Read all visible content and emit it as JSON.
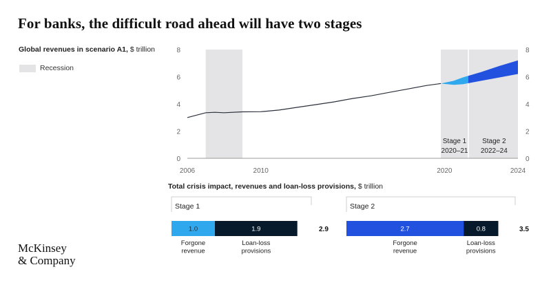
{
  "title": "For banks, the difficult road ahead will have two stages",
  "subtitle_bold": "Global revenues in scenario A1,",
  "subtitle_rest": "$ trillion",
  "legend_label": "Recession",
  "logo_line1": "McKinsey",
  "logo_line2": "& Company",
  "colors": {
    "recession": "#e4e4e6",
    "line": "#2a2f3a",
    "stage1": "#2fa8ee",
    "stage2": "#2251e0",
    "provisions": "#061a2c",
    "gridline": "#cfcfcf"
  },
  "chart_data": [
    {
      "type": "line",
      "xlim": [
        2006,
        2024
      ],
      "ylim": [
        0,
        8
      ],
      "x_ticks": [
        "2006",
        "2010",
        "2020",
        "2024"
      ],
      "y_ticks": [
        "0",
        "2",
        "4",
        "6",
        "8"
      ],
      "recession_periods": [
        [
          2007,
          2009
        ],
        [
          2019.8,
          2024
        ]
      ],
      "series": [
        {
          "x": [
            2006,
            2007,
            2007.5,
            2008,
            2009,
            2010,
            2011,
            2012,
            2013,
            2014,
            2015,
            2016,
            2017,
            2018,
            2019,
            2019.8
          ],
          "y": [
            3.0,
            3.35,
            3.38,
            3.35,
            3.42,
            3.43,
            3.55,
            3.75,
            3.95,
            4.15,
            4.4,
            4.6,
            4.85,
            5.1,
            5.35,
            5.5
          ]
        }
      ],
      "band": {
        "x": [
          2019.8,
          2020.5,
          2021,
          2022,
          2023,
          2024
        ],
        "upper": [
          5.5,
          5.7,
          5.95,
          6.35,
          6.8,
          7.2
        ],
        "lower": [
          5.5,
          5.4,
          5.45,
          5.7,
          5.95,
          6.2
        ]
      },
      "stage_labels": [
        {
          "name": "Stage 1",
          "years": "2020–21"
        },
        {
          "name": "Stage 2",
          "years": "2022–24"
        }
      ]
    },
    {
      "type": "bar",
      "title_bold": "Total crisis impact, revenues and loan-loss provisions,",
      "title_rest": "$ trillion",
      "stages": [
        {
          "name": "Stage 1",
          "total": "2.9",
          "segments": [
            {
              "label": [
                "Forgone",
                "revenue"
              ],
              "value": 1.0,
              "text": "1.0"
            },
            {
              "label": [
                "Loan-loss",
                "provisions"
              ],
              "value": 1.9,
              "text": "1.9"
            }
          ]
        },
        {
          "name": "Stage 2",
          "total": "3.5",
          "segments": [
            {
              "label": [
                "Forgone",
                "revenue"
              ],
              "value": 2.7,
              "text": "2.7"
            },
            {
              "label": [
                "Loan-loss",
                "provisions"
              ],
              "value": 0.8,
              "text": "0.8"
            }
          ]
        }
      ]
    }
  ]
}
